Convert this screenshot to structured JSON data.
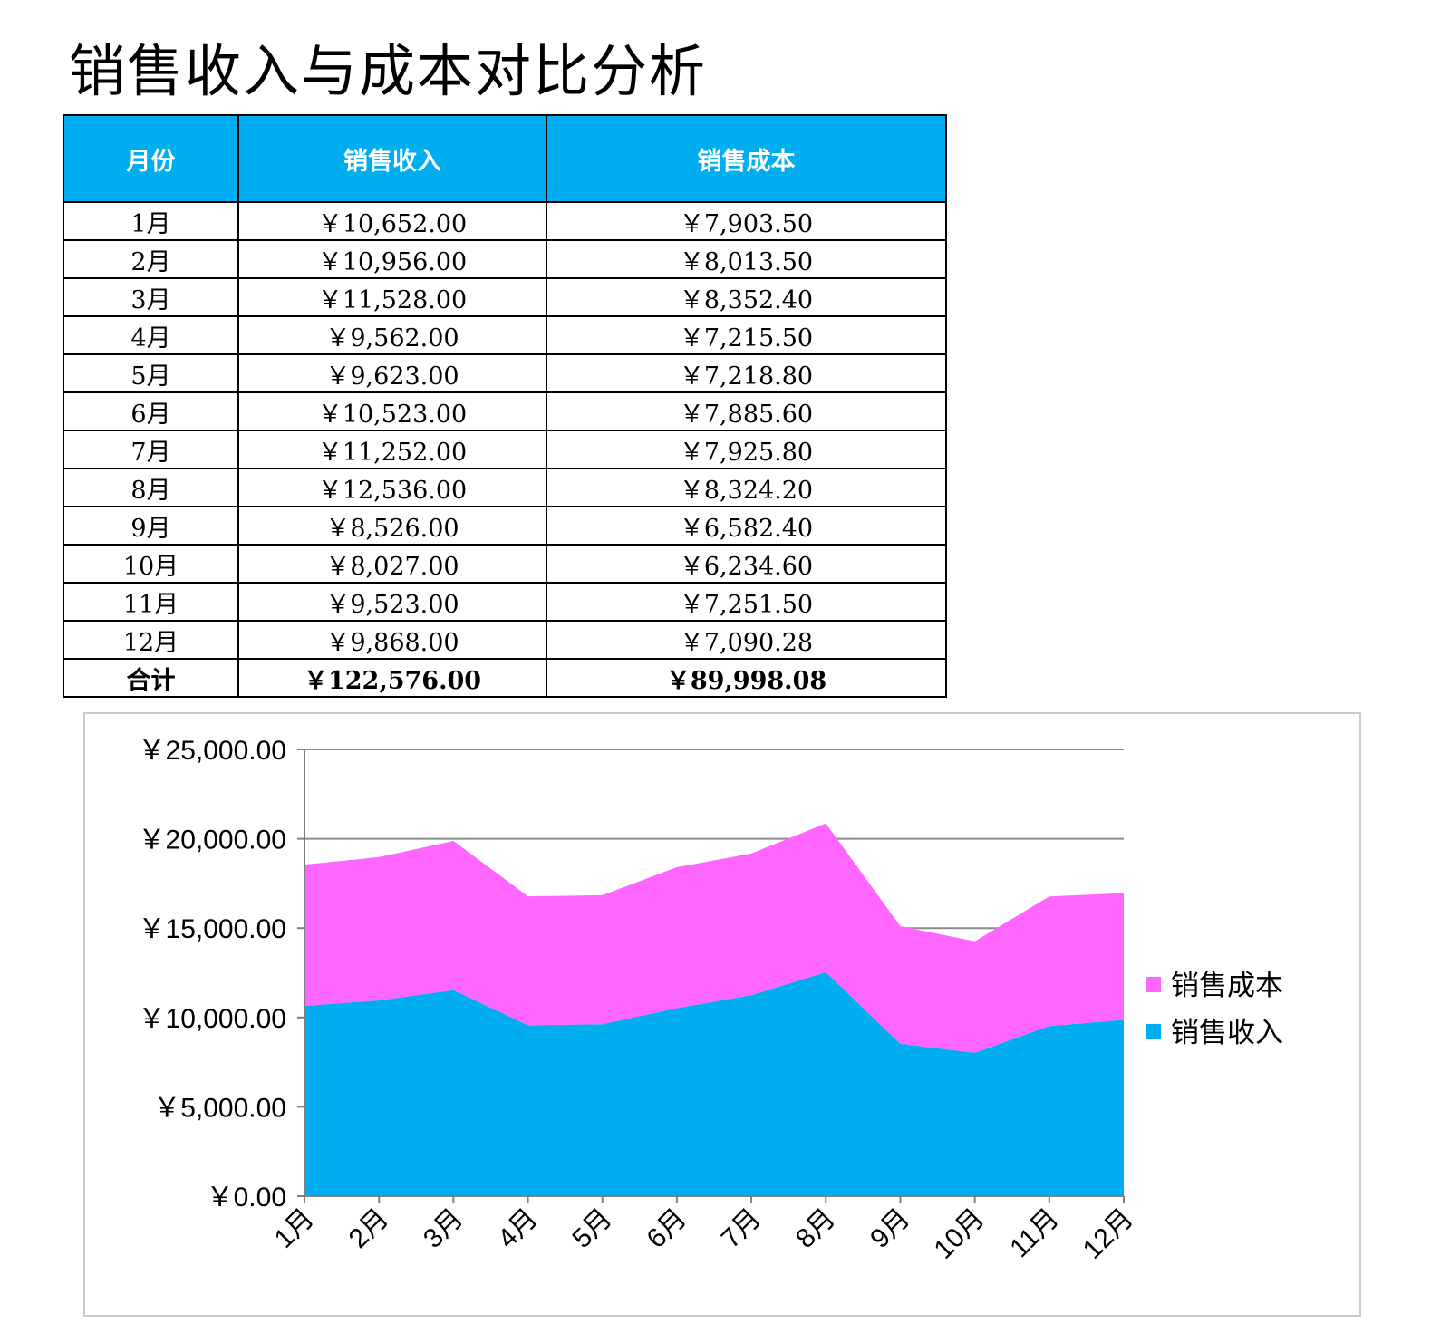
{
  "page": {
    "title": "销售收入与成本对比分析"
  },
  "table": {
    "headers": [
      "月份",
      "销售收入",
      "销售成本"
    ],
    "rows": [
      [
        "1月",
        "￥10,652.00",
        "￥7,903.50"
      ],
      [
        "2月",
        "￥10,956.00",
        "￥8,013.50"
      ],
      [
        "3月",
        "￥11,528.00",
        "￥8,352.40"
      ],
      [
        "4月",
        "￥9,562.00",
        "￥7,215.50"
      ],
      [
        "5月",
        "￥9,623.00",
        "￥7,218.80"
      ],
      [
        "6月",
        "￥10,523.00",
        "￥7,885.60"
      ],
      [
        "7月",
        "￥11,252.00",
        "￥7,925.80"
      ],
      [
        "8月",
        "￥12,536.00",
        "￥8,324.20"
      ],
      [
        "9月",
        "￥8,526.00",
        "￥6,582.40"
      ],
      [
        "10月",
        "￥8,027.00",
        "￥6,234.60"
      ],
      [
        "11月",
        "￥9,523.00",
        "￥7,251.50"
      ],
      [
        "12月",
        "￥9,868.00",
        "￥7,090.28"
      ]
    ],
    "total": [
      "合计",
      "￥122,576.00",
      "￥89,998.08"
    ]
  },
  "chart_data": {
    "type": "area",
    "stacked": true,
    "categories": [
      "1月",
      "2月",
      "3月",
      "4月",
      "5月",
      "6月",
      "7月",
      "8月",
      "9月",
      "10月",
      "11月",
      "12月"
    ],
    "series": [
      {
        "name": "销售收入",
        "color": "#00aeef",
        "values": [
          10652,
          10956,
          11528,
          9562,
          9623,
          10523,
          11252,
          12536,
          8526,
          8027,
          9523,
          9868
        ]
      },
      {
        "name": "销售成本",
        "color": "#ff66ff",
        "values": [
          7903.5,
          8013.5,
          8352.4,
          7215.5,
          7218.8,
          7885.6,
          7925.8,
          8324.2,
          6582.4,
          6234.6,
          7251.5,
          7090.28
        ]
      }
    ],
    "ylim": [
      0,
      25000
    ],
    "yticks": [
      0,
      5000,
      10000,
      15000,
      20000,
      25000
    ],
    "ytick_labels": [
      "￥0.00",
      "￥5,000.00",
      "￥10,000.00",
      "￥15,000.00",
      "￥20,000.00",
      "￥25,000.00"
    ],
    "legend": {
      "placement": "right",
      "order": [
        "销售成本",
        "销售收入"
      ]
    },
    "grid": true,
    "axis_color": "#7f7f7f"
  }
}
